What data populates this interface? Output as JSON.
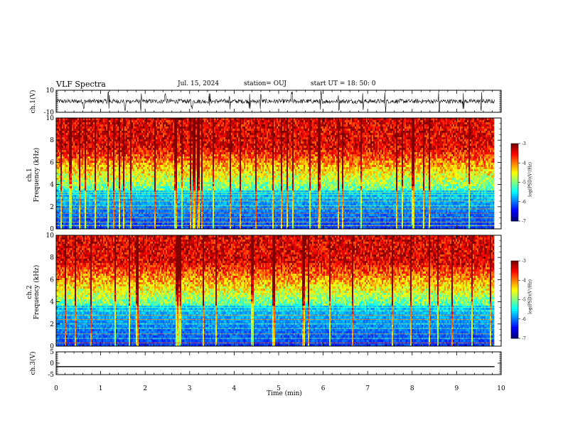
{
  "header": {
    "title": "VLF Spectra",
    "date": "Jul. 15, 2024",
    "station": "station= OUJ",
    "start": "start UT =  18: 50: 0"
  },
  "chart_data": [
    {
      "type": "line",
      "name": "ch1-waveform",
      "ylabel": "ch.1(V)",
      "ylim": [
        -10,
        10
      ],
      "yticks": [
        "10",
        "-10"
      ],
      "xlim": [
        0,
        10
      ],
      "baseline": 0,
      "noise_amplitude": 2,
      "spikes_min": [
        0.62,
        1.18,
        1.55,
        1.9,
        2.45,
        3.05,
        3.45,
        3.9,
        4.35,
        4.6,
        5.3,
        5.95,
        6.35,
        6.9,
        7.4,
        8.6,
        9.15,
        9.55
      ]
    },
    {
      "type": "heatmap",
      "name": "ch1-spectrogram",
      "ylabel": "ch.1\nFrequency (kHz)",
      "ylim": [
        0,
        10
      ],
      "yticks": [
        "0",
        "2",
        "4",
        "6",
        "8",
        "10"
      ],
      "xlim": [
        0,
        9.85
      ],
      "colorbar": {
        "label": "log(PSD)(V²/Hz)",
        "range": [
          -7,
          -3
        ],
        "ticks": [
          "-3",
          "-4",
          "-5",
          "-6",
          "-7"
        ]
      },
      "noise_floor_khz": 3.4,
      "horizontal_lines_khz": [
        0.3,
        0.6,
        1.0,
        1.4,
        1.8,
        2.1,
        2.5,
        2.8,
        3.1,
        3.3
      ]
    },
    {
      "type": "heatmap",
      "name": "ch2-spectrogram",
      "ylabel": "ch.2\nFrequency (kHz)",
      "ylim": [
        0,
        10
      ],
      "yticks": [
        "0",
        "2",
        "4",
        "6",
        "8",
        "10"
      ],
      "xlim": [
        0,
        9.85
      ],
      "colorbar": {
        "label": "log(PSD)(V²/Hz)",
        "range": [
          -7,
          -3
        ],
        "ticks": [
          "-3",
          "-4",
          "-5",
          "-6",
          "-7"
        ]
      },
      "noise_floor_khz": 3.6,
      "horizontal_lines_khz": [
        0.3,
        0.7,
        1.1,
        1.6,
        2.0,
        2.4,
        2.8,
        3.2,
        3.5
      ]
    },
    {
      "type": "line",
      "name": "ch3-waveform",
      "ylabel": "ch.3(V)",
      "ylim": [
        -5,
        5
      ],
      "yticks": [
        "5",
        "0",
        "-5"
      ],
      "xlim": [
        0,
        9.85
      ],
      "value": -1.5
    }
  ],
  "xaxis": {
    "label": "Time (min)",
    "range": [
      0,
      10
    ],
    "ticks": [
      "0",
      "1",
      "2",
      "3",
      "4",
      "5",
      "6",
      "7",
      "8",
      "9",
      "10"
    ]
  }
}
